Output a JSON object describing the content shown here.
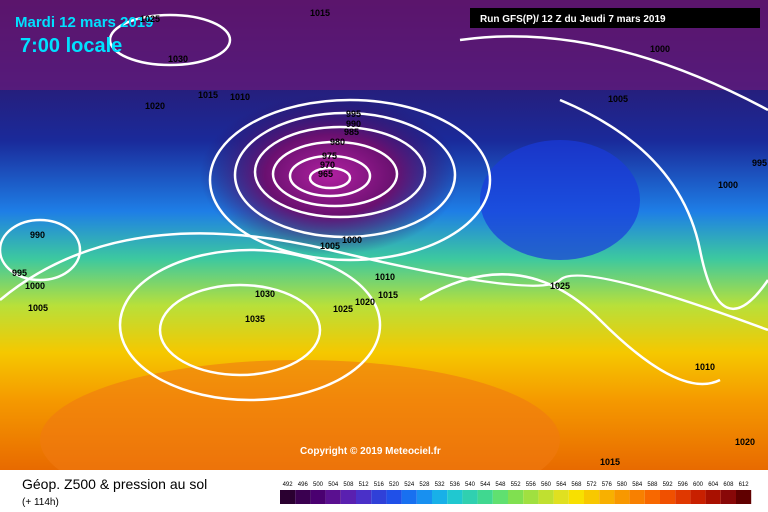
{
  "header": {
    "date": "Mardi 12 mars 2019",
    "time": "7:00 locale",
    "run": "Run GFS(P)/ 12 Z du Jeudi 7 mars 2019"
  },
  "copyright": "Copyright © 2019 Meteociel.fr",
  "footer": {
    "title": "Géop. Z500 & pression au sol",
    "lead": "(+ 114h)"
  },
  "isobar_labels": [
    "1025",
    "1030",
    "1015",
    "1020",
    "1015",
    "1010",
    "995",
    "990",
    "985",
    "980",
    "975",
    "970",
    "965",
    "1000",
    "1005",
    "1000",
    "995",
    "990",
    "995",
    "1000",
    "1005",
    "1030",
    "1035",
    "1005",
    "1000",
    "1010",
    "1015",
    "1020",
    "1025",
    "1025",
    "1010",
    "1020",
    "1015"
  ],
  "legend": [
    492,
    496,
    500,
    504,
    508,
    512,
    516,
    520,
    524,
    528,
    532,
    536,
    540,
    544,
    548,
    552,
    556,
    560,
    564,
    568,
    572,
    576,
    580,
    584,
    588,
    592,
    596,
    600,
    604,
    608,
    612
  ]
}
